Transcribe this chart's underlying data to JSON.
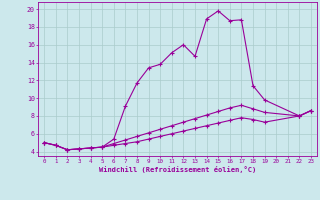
{
  "xlabel": "Windchill (Refroidissement éolien,°C)",
  "bg_color": "#cce8ec",
  "line_color": "#990099",
  "grid_color": "#aacccc",
  "x_ticks": [
    0,
    1,
    2,
    3,
    4,
    5,
    6,
    7,
    8,
    9,
    10,
    11,
    12,
    13,
    14,
    15,
    16,
    17,
    18,
    19,
    20,
    21,
    22,
    23
  ],
  "y_ticks": [
    4,
    6,
    8,
    10,
    12,
    14,
    16,
    18,
    20
  ],
  "ylim": [
    3.5,
    20.8
  ],
  "xlim": [
    -0.5,
    23.5
  ],
  "line1_x": [
    0,
    1,
    2,
    3,
    4,
    5,
    6,
    7,
    8,
    9,
    10,
    11,
    12,
    13,
    14,
    15,
    16,
    17,
    18,
    19,
    22,
    23
  ],
  "line1_y": [
    5.0,
    4.7,
    4.2,
    4.3,
    4.4,
    4.5,
    5.4,
    9.1,
    11.7,
    13.4,
    13.8,
    15.1,
    16.0,
    14.7,
    18.9,
    19.8,
    18.7,
    18.8,
    11.4,
    9.8,
    8.0,
    8.6
  ],
  "line2_x": [
    0,
    1,
    2,
    3,
    4,
    5,
    6,
    7,
    8,
    9,
    10,
    11,
    12,
    13,
    14,
    15,
    16,
    17,
    18,
    19,
    22,
    23
  ],
  "line2_y": [
    5.0,
    4.7,
    4.2,
    4.3,
    4.4,
    4.5,
    4.9,
    5.3,
    5.7,
    6.1,
    6.5,
    6.9,
    7.3,
    7.7,
    8.1,
    8.5,
    8.9,
    9.2,
    8.8,
    8.4,
    8.0,
    8.6
  ],
  "line3_x": [
    0,
    1,
    2,
    3,
    4,
    5,
    6,
    7,
    8,
    9,
    10,
    11,
    12,
    13,
    14,
    15,
    16,
    17,
    18,
    19,
    22,
    23
  ],
  "line3_y": [
    5.0,
    4.7,
    4.2,
    4.3,
    4.4,
    4.5,
    4.7,
    4.9,
    5.1,
    5.4,
    5.7,
    6.0,
    6.3,
    6.6,
    6.9,
    7.2,
    7.5,
    7.8,
    7.6,
    7.3,
    8.0,
    8.6
  ]
}
